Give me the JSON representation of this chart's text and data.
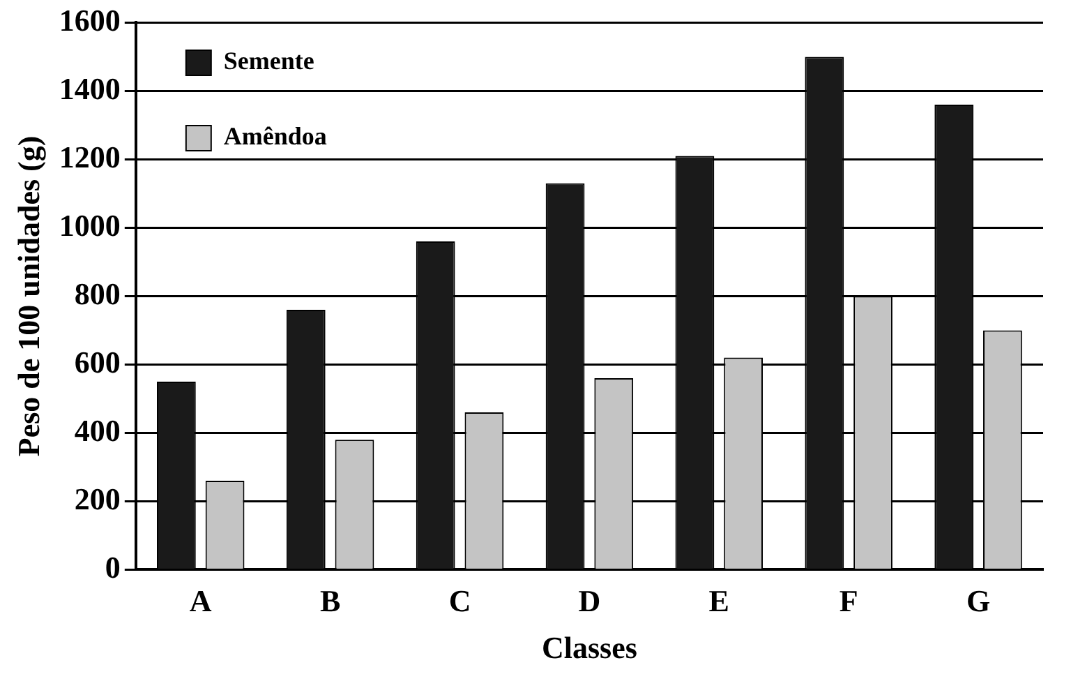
{
  "chart_data": {
    "type": "bar",
    "xlabel": "Classes",
    "ylabel": "Peso de 100 unidades (g)",
    "categories": [
      "A",
      "B",
      "C",
      "D",
      "E",
      "F",
      "G"
    ],
    "series": [
      {
        "name": "Semente",
        "color": "#1a1a1a",
        "values": [
          550,
          760,
          960,
          1130,
          1210,
          1500,
          1360
        ]
      },
      {
        "name": "Amêndoa",
        "color": "#c4c4c4",
        "values": [
          260,
          380,
          460,
          560,
          620,
          800,
          700
        ]
      }
    ],
    "ylim": [
      0,
      1600
    ],
    "yticks": [
      0,
      200,
      400,
      600,
      800,
      1000,
      1200,
      1400,
      1600
    ],
    "grid": "y",
    "legend": "top left"
  }
}
